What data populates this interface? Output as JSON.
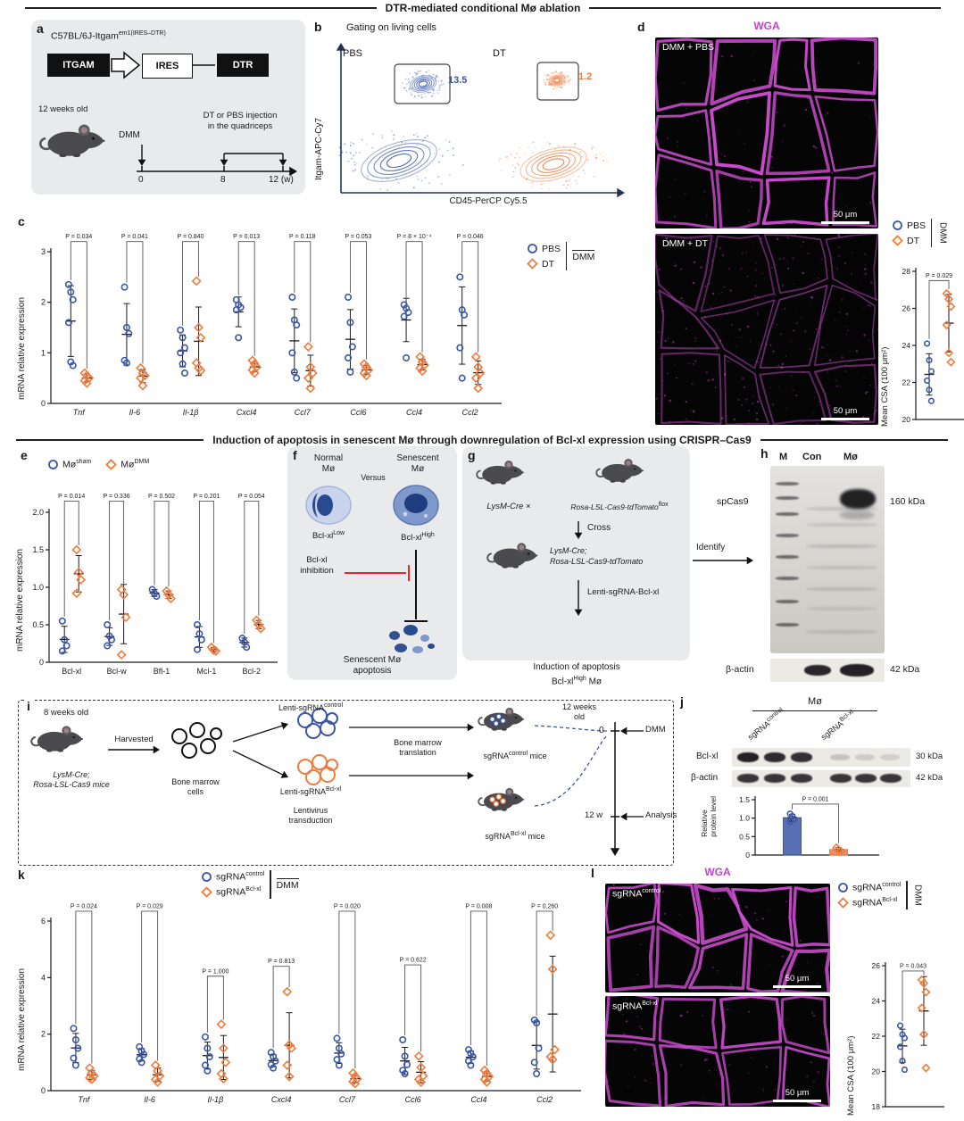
{
  "headers": {
    "top": "DTR-mediated conditional Mø ablation",
    "middle": "Induction of apoptosis in senescent Mø through downregulation of Bcl-xl expression using CRISPR–Cas9"
  },
  "colors": {
    "blue": "#3a57a7",
    "orange": "#ef7b3d",
    "magenta": "#c43fd1",
    "red": "#e8262a",
    "panel_bg": "#e9eaeb"
  },
  "panel_a": {
    "label": "a",
    "construct_base": "C57BL/6J-Itgam",
    "construct_sup": "em1(IRES–DTR)",
    "box1": "ITGAM",
    "box2": "IRES",
    "box3": "DTR",
    "age": "12 weeks old",
    "dmm": "DMM",
    "injection1": "DT or PBS injection",
    "injection2": "in the quadriceps",
    "t0": "0",
    "t8": "8",
    "t12": "12 (w)"
  },
  "panel_b": {
    "label": "b",
    "title": "Gating on living cells",
    "left_name": "PBS",
    "left_value": "13.5",
    "right_name": "DT",
    "right_value": "1.2",
    "ylabel": "Itgam-APC-Cy7",
    "xlabel": "CD45-PerCP Cy5.5"
  },
  "panel_c": {
    "label": "c",
    "ylabel": "mRNA relative expression",
    "legend": {
      "s1": "PBS",
      "s2": "DT",
      "group": "DMM"
    }
  },
  "panel_d": {
    "label": "d",
    "stain": "WGA",
    "cap1": "DMM + PBS",
    "cap2": "DMM + DT",
    "scale": "50 μm",
    "legend": {
      "s1": "PBS",
      "s2": "DT",
      "group": "DMM"
    },
    "ylabel": "Mean CSA (100 μm²)"
  },
  "panel_e": {
    "label": "e",
    "ylabel": "mRNA relative expression",
    "legend": {
      "s1_base": "Mø",
      "s1_sup": "sham",
      "s2_base": "Mø",
      "s2_sup": "DMM"
    }
  },
  "panel_f": {
    "label": "f",
    "normal1": "Normal",
    "normal2": "Mø",
    "versus": "Versus",
    "sen1": "Senescent",
    "sen2": "Mø",
    "low_base": "Bcl-xl",
    "low_sup": "Low",
    "high_base": "Bcl-xl",
    "high_sup": "High",
    "inh1": "Bcl-xl",
    "inh2": "inhibition",
    "apo1": "Senescent Mø",
    "apo2": "apoptosis"
  },
  "panel_g": {
    "label": "g",
    "m1": "LysM-Cre",
    "times": "×",
    "m2_base": "Rosa-LSL-Cas9-tdTomato",
    "m2_sup": "flox",
    "cross": "Cross",
    "m3_line1": "LysM-Cre;",
    "m3_line2": "Rosa-LSL-Cas9-tdTomato",
    "identify": "Identify",
    "lenti": "Lenti-sgRNA-Bcl-xl",
    "ind1": "Induction of apoptosis",
    "ind2_base": "Bcl-xl",
    "ind2_sup": "High",
    "ind2_rest": " Mø"
  },
  "panel_h": {
    "label": "h",
    "lane_m": "M",
    "lane_con": "Con",
    "lane_mo": "Mø",
    "band1": "spCas9",
    "band1_kda": "160 kDa",
    "band2": "β-actin",
    "band2_kda": "42 kDa"
  },
  "panel_i": {
    "label": "i",
    "age": "8 weeks old",
    "mice1": "LysM-Cre;",
    "mice2": "Rosa-LSL-Cas9 mice",
    "harvested": "Harvested",
    "bm1": "Bone marrow",
    "bm2": "cells",
    "lc_base": "Lenti-sgRNA",
    "lc_sup": "control",
    "lb_base": "Lenti-sgRNA",
    "lb_sup": "Bcl-xl",
    "trans1": "Lentivirus",
    "trans2": "transduction",
    "bmt1": "Bone marrow",
    "bmt2": "translation",
    "mc_base": "sgRNA",
    "mc_sup": "control",
    "mc_rest": " mice",
    "mb_base": "sgRNA",
    "mb_sup": "Bcl-xl",
    "mb_rest": " mice",
    "age2_1": "12 weeks",
    "age2_2": "old",
    "t0": "0",
    "dmm": "DMM",
    "t12": "12 w",
    "analysis": "Analysis"
  },
  "panel_j": {
    "label": "j",
    "header": "Mø",
    "lane1_base": "sgRNA",
    "lane1_sup": "control",
    "lane2_base": "sgRNA",
    "lane2_sup": "Bcl-xl",
    "row1": "Bcl-xl",
    "row1_kda": "30 kDa",
    "row2": "β-actin",
    "row2_kda": "42 kDa",
    "ylabel1": "Relative",
    "ylabel2": "protein level"
  },
  "panel_k": {
    "label": "k",
    "ylabel": "mRNA relative expression",
    "legend": {
      "s1_base": "sgRNA",
      "s1_sup": "control",
      "s2_base": "sgRNA",
      "s2_sup": "Bcl-xl",
      "group": "DMM"
    }
  },
  "panel_l": {
    "label": "l",
    "stain": "WGA",
    "cap1_base": "sgRNA",
    "cap1_sup": "control",
    "cap2_base": "sgRNA",
    "cap2_sup": "Bcl-xl",
    "scale": "50 μm",
    "legend": {
      "s1_base": "sgRNA",
      "s1_sup": "control",
      "s2_base": "sgRNA",
      "s2_sup": "Bcl-xl",
      "group": "DMM"
    },
    "ylabel": "Mean CSA (100 μm²)"
  },
  "chart_data": {
    "c": {
      "type": "scatter",
      "title": "Inflammatory gene expression after PBS or DT (DMM)",
      "ylabel": "mRNA relative expression",
      "ylim": [
        0,
        3
      ],
      "yticks": [
        "0",
        "1",
        "2",
        "3"
      ],
      "series_names": [
        "PBS",
        "DT"
      ],
      "groups": [
        {
          "gene": "Tnf",
          "p": "P = 0.034",
          "bracket": 3.2,
          "s1": [
            2.35,
            2.2,
            2.05,
            1.6,
            0.82,
            0.75
          ],
          "s2": [
            0.6,
            0.55,
            0.5,
            0.45,
            0.4
          ]
        },
        {
          "gene": "Il-6",
          "p": "P = 0.041",
          "bracket": 3.2,
          "s1": [
            2.3,
            1.5,
            1.38,
            0.85,
            0.8
          ],
          "s2": [
            0.7,
            0.6,
            0.55,
            0.5,
            0.35
          ]
        },
        {
          "gene": "Il-1β",
          "p": "P = 0.840",
          "bracket": 3.2,
          "s1": [
            1.45,
            1.3,
            1.1,
            1.0,
            0.78,
            0.6
          ],
          "s2": [
            2.42,
            1.5,
            1.3,
            0.8,
            0.7,
            0.65
          ]
        },
        {
          "gene": "Cxcl4",
          "p": "P = 0.013",
          "bracket": 3.2,
          "s1": [
            2.05,
            1.95,
            1.9,
            1.85,
            1.3
          ],
          "s2": [
            0.85,
            0.78,
            0.72,
            0.66,
            0.6
          ]
        },
        {
          "gene": "Ccl7",
          "p": "P = 0.118",
          "bracket": 3.2,
          "s1": [
            2.1,
            1.65,
            1.55,
            1.0,
            0.62,
            0.5
          ],
          "s2": [
            1.12,
            0.72,
            0.6,
            0.5,
            0.3
          ]
        },
        {
          "gene": "Ccl6",
          "p": "P = 0.053",
          "bracket": 3.2,
          "s1": [
            2.1,
            1.6,
            1.12,
            0.9,
            0.62
          ],
          "s2": [
            0.78,
            0.72,
            0.66,
            0.6,
            0.55
          ]
        },
        {
          "gene": "Ccl4",
          "p": "P = 8 × 10⁻⁴",
          "bracket": 3.2,
          "s1": [
            1.95,
            1.88,
            1.8,
            1.72,
            0.9
          ],
          "s2": [
            0.92,
            0.82,
            0.76,
            0.7,
            0.64
          ]
        },
        {
          "gene": "Ccl2",
          "p": "P = 0.046",
          "bracket": 3.2,
          "s1": [
            2.5,
            1.85,
            1.75,
            1.1,
            0.5
          ],
          "s2": [
            0.92,
            0.72,
            0.6,
            0.5,
            0.3
          ]
        }
      ]
    },
    "e": {
      "type": "scatter",
      "title": "Anti-apoptotic gene expression in sham vs DMM macrophages",
      "ylabel": "mRNA relative expression",
      "ylim": [
        0,
        2
      ],
      "yticks": [
        "0",
        "0.5",
        "1.0",
        "1.5",
        "2.0"
      ],
      "series_names": [
        "Mø sham",
        "Mø DMM"
      ],
      "groups": [
        {
          "gene": "Bcl-xl",
          "p": "P = 0.014",
          "bracket": 2.15,
          "s1": [
            0.55,
            0.3,
            0.22,
            0.15
          ],
          "s2": [
            1.5,
            1.2,
            1.1,
            0.92
          ]
        },
        {
          "gene": "Bcl-w",
          "p": "P = 0.336",
          "bracket": 2.15,
          "s1": [
            0.5,
            0.35,
            0.3,
            0.22
          ],
          "s2": [
            0.97,
            0.9,
            0.6,
            0.1
          ]
        },
        {
          "gene": "Bfl-1",
          "p": "P = 0.502",
          "bracket": 2.15,
          "s1": [
            0.97,
            0.92,
            0.88
          ],
          "s2": [
            0.95,
            0.9,
            0.85
          ]
        },
        {
          "gene": "Mcl-1",
          "p": "P = 0.201",
          "bracket": 2.15,
          "s1": [
            0.5,
            0.38,
            0.3,
            0.17
          ],
          "s2": [
            0.2,
            0.16,
            0.15
          ]
        },
        {
          "gene": "Bcl-2",
          "p": "P = 0.054",
          "bracket": 2.15,
          "s1": [
            0.32,
            0.27,
            0.2
          ],
          "s2": [
            0.56,
            0.5,
            0.45
          ]
        }
      ]
    },
    "k": {
      "type": "scatter",
      "title": "Inflammatory gene expression in sgRNA control vs sgRNA Bcl-xl (DMM)",
      "ylabel": "mRNA relative expression",
      "ylim": [
        0,
        6
      ],
      "yticks": [
        "0",
        "2",
        "4",
        "6"
      ],
      "series_names": [
        "sgRNA control",
        "sgRNA Bcl-xl"
      ],
      "groups": [
        {
          "gene": "Tnf",
          "p": "P = 0.024",
          "bracket": 6.35,
          "s1": [
            2.2,
            1.8,
            1.5,
            1.15,
            0.9
          ],
          "s2": [
            0.8,
            0.62,
            0.52,
            0.45,
            0.4
          ]
        },
        {
          "gene": "Il-6",
          "p": "P = 0.029",
          "bracket": 6.35,
          "s1": [
            1.55,
            1.4,
            1.28,
            1.12,
            1.0
          ],
          "s2": [
            0.9,
            0.7,
            0.52,
            0.4,
            0.3
          ]
        },
        {
          "gene": "Il-1β",
          "p": "P = 1.000",
          "bracket": 4.05,
          "s1": [
            1.9,
            1.5,
            1.2,
            0.9,
            0.7
          ],
          "s2": [
            2.35,
            1.5,
            1.0,
            0.6,
            0.42
          ]
        },
        {
          "gene": "Cxcl4",
          "p": "P = 0.813",
          "bracket": 4.4,
          "s1": [
            1.35,
            1.2,
            1.05,
            0.92,
            0.8
          ],
          "s2": [
            3.5,
            1.62,
            1.5,
            0.9,
            0.5
          ]
        },
        {
          "gene": "Ccl7",
          "p": "P = 0.020",
          "bracket": 6.35,
          "s1": [
            1.85,
            1.5,
            1.3,
            1.1,
            0.9
          ],
          "s2": [
            0.62,
            0.5,
            0.42,
            0.32,
            0.25
          ]
        },
        {
          "gene": "Ccl6",
          "p": "P = 0.622",
          "bracket": 4.45,
          "s1": [
            1.8,
            1.22,
            0.92,
            0.72,
            0.6
          ],
          "s2": [
            1.22,
            0.82,
            0.52,
            0.4,
            0.3
          ]
        },
        {
          "gene": "Ccl4",
          "p": "P = 0.008",
          "bracket": 6.35,
          "s1": [
            1.45,
            1.32,
            1.2,
            1.05,
            0.9
          ],
          "s2": [
            0.72,
            0.6,
            0.5,
            0.4,
            0.3
          ]
        },
        {
          "gene": "Ccl2",
          "p": "P = 0.260",
          "bracket": 6.35,
          "s1": [
            2.5,
            2.4,
            1.5,
            1.0,
            0.6
          ],
          "s2": [
            5.5,
            4.3,
            1.45,
            1.2,
            1.1
          ]
        }
      ]
    },
    "d_csa": {
      "type": "scatter",
      "title": "Mean muscle fiber cross-sectional area, PBS vs DT (DMM)",
      "ylabel": "Mean CSA (100 μm²)",
      "ylim": [
        20,
        28
      ],
      "yticks": [
        "20",
        "22",
        "24",
        "26",
        "28"
      ],
      "series_names": [
        "PBS",
        "DT"
      ],
      "groups": [
        {
          "p": "P = 0.029",
          "bracket": 27.5,
          "s1": [
            24.1,
            23.2,
            22.6,
            22.1,
            21.6,
            21.0
          ],
          "s2": [
            26.8,
            26.5,
            26.1,
            25.1,
            23.6,
            23.1
          ]
        }
      ]
    },
    "l_csa": {
      "type": "scatter",
      "title": "Mean muscle fiber cross-sectional area, sgRNA control vs sgRNA Bcl-xl (DMM)",
      "ylabel": "Mean CSA (100 μm²)",
      "ylim": [
        18,
        26
      ],
      "yticks": [
        "18",
        "20",
        "22",
        "24",
        "26"
      ],
      "series_names": [
        "sgRNA control",
        "sgRNA Bcl-xl"
      ],
      "groups": [
        {
          "p": "P = 0.043",
          "bracket": 25.7,
          "s1": [
            22.6,
            22.1,
            21.9,
            21.4,
            20.6,
            20.1
          ],
          "s2": [
            25.2,
            25.0,
            24.5,
            23.6,
            22.1,
            20.2
          ]
        }
      ]
    },
    "j_protein": {
      "type": "bar",
      "title": "Relative Bcl-xl protein level",
      "ylabel": "Relative protein level",
      "ylim": [
        0,
        1.5
      ],
      "yticks": [
        "0",
        "0.5",
        "1.0",
        "1.5"
      ],
      "series_names": [
        "sgRNA control",
        "sgRNA Bcl-xl"
      ],
      "groups": [
        {
          "p": "P = 0.001",
          "bracket": 1.38,
          "s1": [
            1.12,
            1.05,
            0.98,
            0.9
          ],
          "s2": [
            0.2,
            0.15,
            0.1
          ]
        }
      ]
    }
  }
}
